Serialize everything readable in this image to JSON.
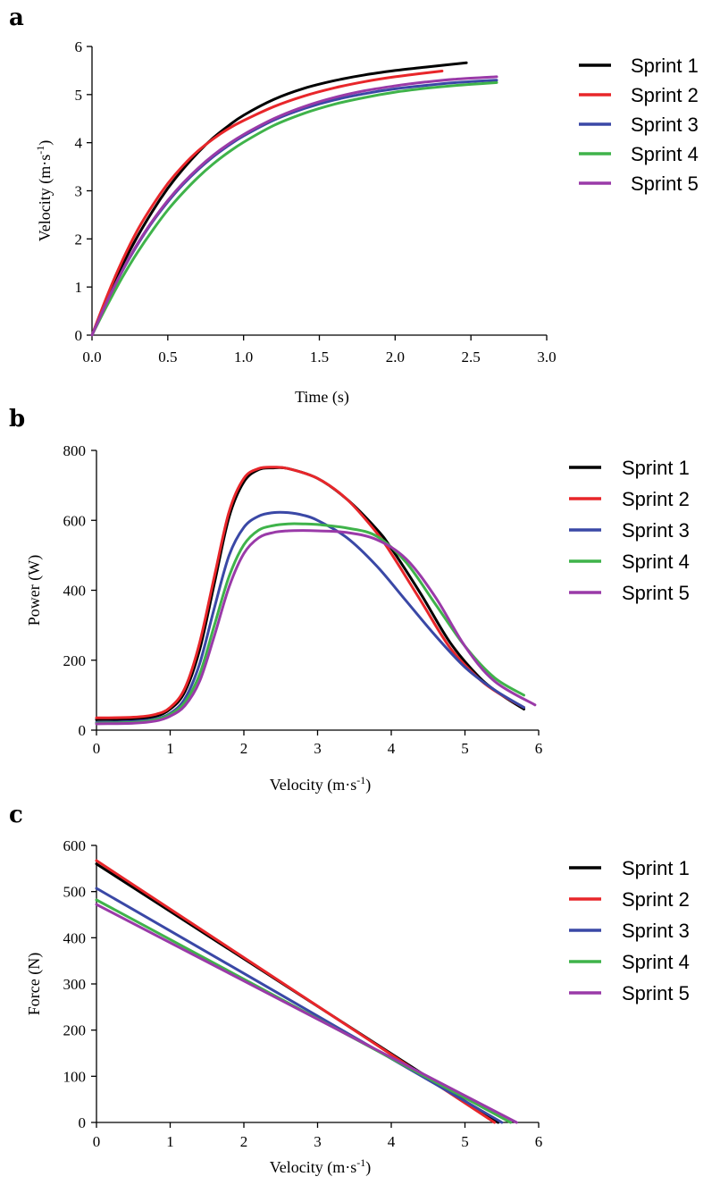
{
  "colors": {
    "Sprint 1": "#000000",
    "Sprint 2": "#e8262a",
    "Sprint 3": "#3a48a6",
    "Sprint 4": "#3fb34a",
    "Sprint 5": "#9a3aa8"
  },
  "chart_data": [
    {
      "id": "a",
      "type": "line",
      "panel_label": "a",
      "xlabel": "Time (s)",
      "ylabel": "Velocity (m·s",
      "ylabel_sup": "-1",
      "ylabel_close": ")",
      "xlim": [
        0,
        3
      ],
      "ylim": [
        0,
        6
      ],
      "xticks": [
        "0.0",
        "0.5",
        "1.0",
        "1.5",
        "2.0",
        "2.5",
        "3.0"
      ],
      "yticks": [
        "0",
        "1",
        "2",
        "3",
        "4",
        "5",
        "6"
      ],
      "xtick_values": [
        0,
        0.5,
        1,
        1.5,
        2,
        2.5,
        3
      ],
      "ytick_values": [
        0,
        1,
        2,
        3,
        4,
        5,
        6
      ],
      "legend_position": "right",
      "series": [
        {
          "name": "Sprint 1",
          "x": [
            0,
            0.1,
            0.2,
            0.3,
            0.4,
            0.5,
            0.6,
            0.7,
            0.8,
            0.9,
            1.0,
            1.2,
            1.4,
            1.6,
            1.8,
            2.0,
            2.2,
            2.47
          ],
          "y": [
            0,
            0.75,
            1.45,
            2.05,
            2.58,
            3.05,
            3.45,
            3.8,
            4.1,
            4.35,
            4.57,
            4.9,
            5.13,
            5.29,
            5.41,
            5.5,
            5.57,
            5.66
          ]
        },
        {
          "name": "Sprint 2",
          "x": [
            0,
            0.1,
            0.2,
            0.3,
            0.4,
            0.5,
            0.6,
            0.7,
            0.8,
            0.9,
            1.0,
            1.2,
            1.4,
            1.6,
            1.8,
            2.0,
            2.31
          ],
          "y": [
            0,
            0.82,
            1.55,
            2.18,
            2.7,
            3.15,
            3.52,
            3.83,
            4.08,
            4.29,
            4.46,
            4.75,
            4.97,
            5.14,
            5.27,
            5.37,
            5.49
          ]
        },
        {
          "name": "Sprint 3",
          "x": [
            0,
            0.1,
            0.2,
            0.3,
            0.4,
            0.5,
            0.6,
            0.7,
            0.8,
            0.9,
            1.0,
            1.2,
            1.4,
            1.6,
            1.8,
            2.0,
            2.2,
            2.4,
            2.67
          ],
          "y": [
            0,
            0.7,
            1.33,
            1.88,
            2.36,
            2.77,
            3.13,
            3.44,
            3.71,
            3.94,
            4.14,
            4.47,
            4.71,
            4.89,
            5.02,
            5.12,
            5.19,
            5.25,
            5.3
          ]
        },
        {
          "name": "Sprint 4",
          "x": [
            0,
            0.1,
            0.2,
            0.3,
            0.4,
            0.5,
            0.6,
            0.7,
            0.8,
            0.9,
            1.0,
            1.2,
            1.4,
            1.6,
            1.8,
            2.0,
            2.2,
            2.4,
            2.67
          ],
          "y": [
            0,
            0.62,
            1.2,
            1.72,
            2.18,
            2.6,
            2.96,
            3.28,
            3.56,
            3.8,
            4.01,
            4.36,
            4.61,
            4.8,
            4.94,
            5.05,
            5.13,
            5.19,
            5.25
          ]
        },
        {
          "name": "Sprint 5",
          "x": [
            0,
            0.1,
            0.2,
            0.3,
            0.4,
            0.5,
            0.6,
            0.7,
            0.8,
            0.9,
            1.0,
            1.2,
            1.4,
            1.6,
            1.8,
            2.0,
            2.2,
            2.4,
            2.67
          ],
          "y": [
            0,
            0.7,
            1.34,
            1.9,
            2.38,
            2.8,
            3.16,
            3.47,
            3.74,
            3.97,
            4.17,
            4.5,
            4.75,
            4.94,
            5.08,
            5.18,
            5.26,
            5.32,
            5.37
          ]
        }
      ]
    },
    {
      "id": "b",
      "type": "line",
      "panel_label": "b",
      "xlabel": "Velocity (m·s",
      "xlabel_sup": "-1",
      "xlabel_close": ")",
      "ylabel": "Power (W)",
      "xlim": [
        0,
        6
      ],
      "ylim": [
        0,
        800
      ],
      "xticks": [
        "0",
        "1",
        "2",
        "3",
        "4",
        "5",
        "6"
      ],
      "yticks": [
        "0",
        "200",
        "400",
        "600",
        "800"
      ],
      "xtick_values": [
        0,
        1,
        2,
        3,
        4,
        5,
        6
      ],
      "ytick_values": [
        0,
        200,
        400,
        600,
        800
      ],
      "legend_position": "right",
      "series": [
        {
          "name": "Sprint 1",
          "x": [
            0,
            0.5,
            0.8,
            1.0,
            1.2,
            1.4,
            1.6,
            1.8,
            2.0,
            2.2,
            2.4,
            2.6,
            3.0,
            3.4,
            3.8,
            4.0,
            4.4,
            4.8,
            5.2,
            5.5,
            5.8
          ],
          "y": [
            30,
            32,
            40,
            60,
            110,
            230,
            420,
            610,
            710,
            745,
            750,
            748,
            720,
            660,
            575,
            520,
            390,
            250,
            150,
            100,
            60
          ]
        },
        {
          "name": "Sprint 2",
          "x": [
            0,
            0.5,
            0.8,
            1.0,
            1.2,
            1.4,
            1.6,
            1.8,
            2.0,
            2.2,
            2.4,
            2.6,
            3.0,
            3.4,
            3.8,
            4.0,
            4.4,
            4.8,
            5.2,
            5.5,
            5.8
          ],
          "y": [
            35,
            37,
            45,
            65,
            120,
            250,
            440,
            625,
            720,
            748,
            752,
            748,
            720,
            660,
            565,
            505,
            370,
            235,
            145,
            100,
            65
          ]
        },
        {
          "name": "Sprint 3",
          "x": [
            0,
            0.5,
            0.8,
            1.0,
            1.2,
            1.4,
            1.6,
            1.8,
            2.0,
            2.2,
            2.4,
            2.6,
            2.8,
            3.0,
            3.4,
            3.8,
            4.2,
            4.6,
            5.0,
            5.4,
            5.8
          ],
          "y": [
            22,
            25,
            32,
            48,
            90,
            190,
            350,
            500,
            580,
            612,
            622,
            622,
            615,
            600,
            550,
            470,
            370,
            270,
            180,
            115,
            65
          ]
        },
        {
          "name": "Sprint 4",
          "x": [
            0,
            0.5,
            0.8,
            1.0,
            1.2,
            1.4,
            1.6,
            1.8,
            2.0,
            2.2,
            2.4,
            2.6,
            2.8,
            3.0,
            3.4,
            3.8,
            4.2,
            4.6,
            5.0,
            5.4,
            5.8
          ],
          "y": [
            20,
            22,
            30,
            45,
            80,
            160,
            300,
            440,
            530,
            572,
            585,
            590,
            590,
            588,
            578,
            555,
            480,
            360,
            240,
            150,
            100
          ]
        },
        {
          "name": "Sprint 5",
          "x": [
            0,
            0.5,
            0.8,
            1.0,
            1.2,
            1.4,
            1.6,
            1.8,
            2.0,
            2.2,
            2.4,
            2.6,
            2.8,
            3.0,
            3.4,
            3.8,
            4.2,
            4.6,
            5.0,
            5.4,
            5.95
          ],
          "y": [
            18,
            20,
            26,
            40,
            70,
            140,
            270,
            410,
            505,
            550,
            565,
            570,
            571,
            570,
            565,
            545,
            490,
            380,
            240,
            140,
            72
          ]
        }
      ]
    },
    {
      "id": "c",
      "type": "line",
      "panel_label": "c",
      "xlabel": "Velocity (m·s",
      "xlabel_sup": "-1",
      "xlabel_close": ")",
      "ylabel": "Force (N)",
      "xlim": [
        0,
        6
      ],
      "ylim": [
        0,
        600
      ],
      "xticks": [
        "0",
        "1",
        "2",
        "3",
        "4",
        "5",
        "6"
      ],
      "yticks": [
        "0",
        "100",
        "200",
        "300",
        "400",
        "500",
        "600"
      ],
      "xtick_values": [
        0,
        1,
        2,
        3,
        4,
        5,
        6
      ],
      "ytick_values": [
        0,
        100,
        200,
        300,
        400,
        500,
        600
      ],
      "legend_position": "right",
      "series": [
        {
          "name": "Sprint 1",
          "x": [
            0,
            5.45
          ],
          "y": [
            560,
            0
          ]
        },
        {
          "name": "Sprint 2",
          "x": [
            0,
            5.4
          ],
          "y": [
            567,
            0
          ]
        },
        {
          "name": "Sprint 3",
          "x": [
            0,
            5.5
          ],
          "y": [
            507,
            0
          ]
        },
        {
          "name": "Sprint 4",
          "x": [
            0,
            5.62
          ],
          "y": [
            482,
            0
          ]
        },
        {
          "name": "Sprint 5",
          "x": [
            0,
            5.7
          ],
          "y": [
            472,
            0
          ]
        }
      ]
    }
  ]
}
